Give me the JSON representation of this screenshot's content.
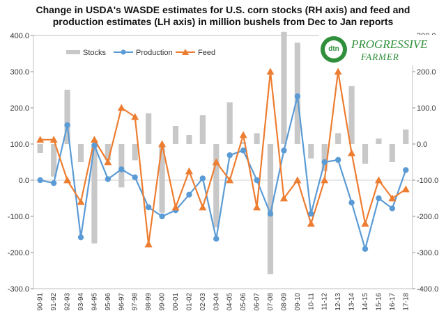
{
  "title_lines": [
    "Change in USDA's WASDE  estimates for U.S. corn stocks (RH axis) and feed and",
    "production estimates (LH axis) in million bushels from Dec to Jan reports"
  ],
  "logo": {
    "mark": "dtn",
    "line1": "PROGRESSIVE",
    "line2": "FARMER"
  },
  "colors": {
    "stocks": "#c8c8c8",
    "production": "#5b9bd5",
    "feed": "#ed7d31",
    "axis_text": "#333333",
    "grid": "#bfbfbf"
  },
  "chart_data": {
    "type": "bar+line",
    "title": "Change in USDA's WASDE  estimates for U.S. corn stocks (RH axis) and feed and production estimates (LH axis) in million bushels from Dec to Jan reports",
    "categories": [
      "90-91",
      "91-92",
      "92-93",
      "93-94",
      "94-95",
      "95-96",
      "96-97",
      "97-98",
      "98-99",
      "99-00",
      "00-01",
      "01-02",
      "02-03",
      "03-04",
      "04-05",
      "05-06",
      "06-07",
      "07-08",
      "08-09",
      "09-10",
      "10-11",
      "11-12",
      "12-13",
      "13-14",
      "14-15",
      "15-16",
      "16-17",
      "17-18"
    ],
    "left_axis": {
      "ylim": [
        -300,
        400
      ],
      "ticks": [
        "-300.0",
        "-200.0",
        "-100.0",
        "0.0",
        "100.0",
        "200.0",
        "300.0",
        "400.0"
      ]
    },
    "right_axis": {
      "ylim": [
        -400,
        300
      ],
      "ticks": [
        "-400.0",
        "-300.0",
        "-200.0",
        "-100.0",
        "0.0",
        "100.0",
        "200.0",
        "300.0"
      ]
    },
    "legend": [
      "Stocks",
      "Production",
      "Feed"
    ],
    "series": [
      {
        "name": "Stocks",
        "type": "bar",
        "axis": "right",
        "values": [
          -25,
          -90,
          150,
          -50,
          -275,
          -45,
          -120,
          -45,
          85,
          -190,
          50,
          25,
          80,
          -230,
          115,
          5,
          30,
          -360,
          310,
          280,
          -40,
          -75,
          30,
          160,
          -55,
          15,
          -50,
          40
        ]
      },
      {
        "name": "Production",
        "type": "line",
        "axis": "left",
        "values": [
          0,
          -8,
          152,
          -158,
          96,
          3,
          30,
          8,
          -75,
          -100,
          -83,
          -40,
          5,
          -162,
          69,
          82,
          0,
          -93,
          82,
          232,
          -93,
          50,
          56,
          -62,
          -190,
          -50,
          -78,
          28
        ]
      },
      {
        "name": "Feed",
        "type": "line",
        "axis": "left",
        "values": [
          112,
          112,
          0,
          -60,
          112,
          50,
          200,
          175,
          -177,
          100,
          -75,
          25,
          -75,
          50,
          0,
          125,
          -75,
          300,
          -50,
          0,
          -120,
          0,
          300,
          75,
          -120,
          0,
          -50,
          -25
        ]
      }
    ]
  }
}
